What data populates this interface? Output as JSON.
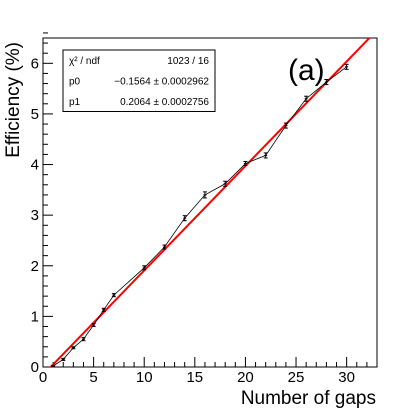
{
  "chart_data": {
    "type": "scatter",
    "panel_label": "(a)",
    "xlabel": "Number of gaps",
    "ylabel": "Efficiency (%)",
    "xlim": [
      0,
      33
    ],
    "ylim": [
      0,
      6.5
    ],
    "xticks": [
      0,
      5,
      10,
      15,
      20,
      25,
      30
    ],
    "yticks": [
      0,
      1,
      2,
      3,
      4,
      5,
      6
    ],
    "grid": false,
    "series": [
      {
        "style": "points with error bars connected by thin line",
        "x": [
          1,
          2,
          3,
          4,
          5,
          6,
          7,
          10,
          12,
          14,
          16,
          18,
          20,
          22,
          24,
          26,
          28,
          30
        ],
        "y": [
          0.02,
          0.15,
          0.38,
          0.55,
          0.83,
          1.13,
          1.42,
          1.96,
          2.37,
          2.94,
          3.4,
          3.62,
          4.02,
          4.18,
          4.77,
          5.3,
          5.63,
          5.93
        ],
        "yerr": [
          0.01,
          0.02,
          0.02,
          0.03,
          0.03,
          0.03,
          0.03,
          0.04,
          0.04,
          0.05,
          0.06,
          0.05,
          0.04,
          0.05,
          0.05,
          0.05,
          0.05,
          0.05
        ],
        "color": "#000000"
      }
    ],
    "fit": {
      "type": "linear",
      "color": "#ff0000",
      "p0": -0.1564,
      "p1": 0.2064
    },
    "stats_box": {
      "rows": [
        {
          "label": "χ² / ndf",
          "value": "1023 / 16"
        },
        {
          "label": "p0",
          "value": "−0.1564 ± 0.0002962"
        },
        {
          "label": "p1",
          "value": "0.2064 ± 0.0002756"
        }
      ]
    }
  }
}
